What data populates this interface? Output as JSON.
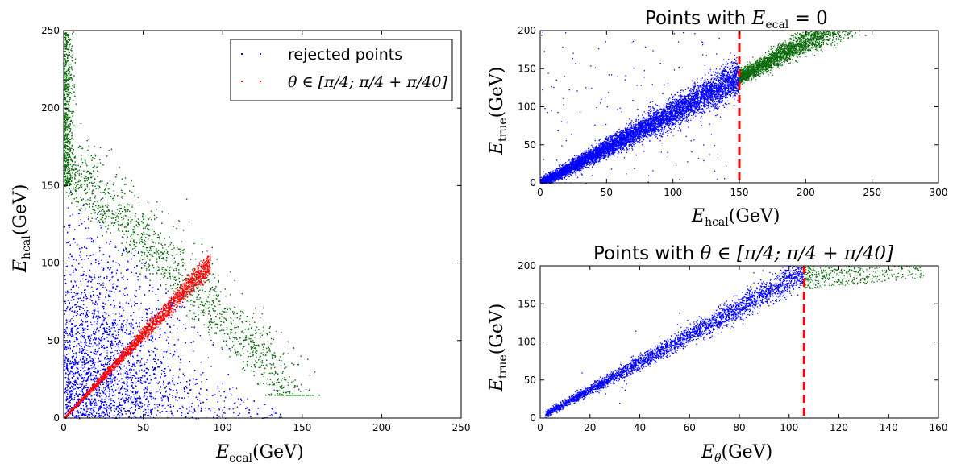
{
  "figure": {
    "colors": {
      "rejected": "#0b6b0b",
      "accepted": "#0000ff",
      "theta_band": "#ff0000",
      "cut_line": "#ff0000"
    }
  },
  "chart_data": [
    {
      "type": "scatter",
      "title": "",
      "xlabel": {
        "main": "E",
        "sub": "ecal",
        "unit": "(GeV)"
      },
      "ylabel": {
        "main": "E",
        "sub": "hcal",
        "unit": "(GeV)"
      },
      "xlim": [
        0,
        250
      ],
      "ylim": [
        0,
        250
      ],
      "xticks": [
        0,
        50,
        100,
        150,
        200,
        250
      ],
      "yticks": [
        0,
        50,
        100,
        150,
        200,
        250
      ],
      "grid": false,
      "legend": {
        "placement": "top-right",
        "entries": [
          "rejected points",
          "θ ∈ [π/4; π/4 + π/40]"
        ]
      },
      "series": [
        {
          "name": "rejected points",
          "color": "#0b6b0b",
          "description_points": [
            [
              0,
              250
            ],
            [
              0,
              150
            ],
            [
              60,
              90
            ],
            [
              110,
              40
            ],
            [
              135,
              20
            ],
            [
              165,
              30
            ]
          ]
        },
        {
          "color": "#0000ff",
          "description_points": [
            [
              0,
              0
            ],
            [
              0,
              150
            ],
            [
              125,
              25
            ],
            [
              140,
              0
            ]
          ]
        },
        {
          "name": "θ ∈ [π/4; π/4 + π/40]",
          "color": "#ff0000",
          "description_points": [
            [
              0,
              0
            ],
            [
              50,
              55
            ],
            [
              90,
              100
            ]
          ]
        }
      ]
    },
    {
      "type": "scatter",
      "title": {
        "prefix": "Points with ",
        "math": "E",
        "sub": "ecal",
        "suffix": " = 0"
      },
      "xlabel": {
        "main": "E",
        "sub": "hcal",
        "unit": "(GeV)"
      },
      "ylabel": {
        "main": "E",
        "sub": "true",
        "unit": "(GeV)"
      },
      "xlim": [
        0,
        300
      ],
      "ylim": [
        0,
        200
      ],
      "xticks": [
        0,
        50,
        100,
        150,
        200,
        250,
        300
      ],
      "yticks": [
        0,
        50,
        100,
        150,
        200
      ],
      "grid": false,
      "cut_line": {
        "x": 150,
        "color": "#ff0000",
        "style": "dashed"
      },
      "series": [
        {
          "color": "#0000ff",
          "description_points": [
            [
              0,
              0
            ],
            [
              75,
              70
            ],
            [
              150,
              140
            ]
          ]
        },
        {
          "color": "#0b6b0b",
          "description_points": [
            [
              150,
              150
            ],
            [
              200,
              190
            ],
            [
              250,
              200
            ]
          ]
        }
      ]
    },
    {
      "type": "scatter",
      "title": {
        "prefix": "Points with ",
        "math": "θ ∈ [π/4; π/4 + π/40]"
      },
      "xlabel": {
        "main": "E",
        "sub": "θ",
        "unit": "(GeV)"
      },
      "ylabel": {
        "main": "E",
        "sub": "true",
        "unit": "(GeV)"
      },
      "xlim": [
        0,
        160
      ],
      "ylim": [
        0,
        200
      ],
      "xticks": [
        0,
        20,
        40,
        60,
        80,
        100,
        120,
        140,
        160
      ],
      "yticks": [
        0,
        50,
        100,
        150,
        200
      ],
      "grid": false,
      "cut_line": {
        "x": 106,
        "color": "#ff0000",
        "style": "dashed"
      },
      "series": [
        {
          "color": "#0000ff",
          "description_points": [
            [
              2,
              5
            ],
            [
              50,
              95
            ],
            [
              106,
              195
            ]
          ]
        },
        {
          "color": "#0b6b0b",
          "description_points": [
            [
              106,
              170
            ],
            [
              130,
              190
            ],
            [
              150,
              200
            ]
          ]
        }
      ]
    }
  ]
}
